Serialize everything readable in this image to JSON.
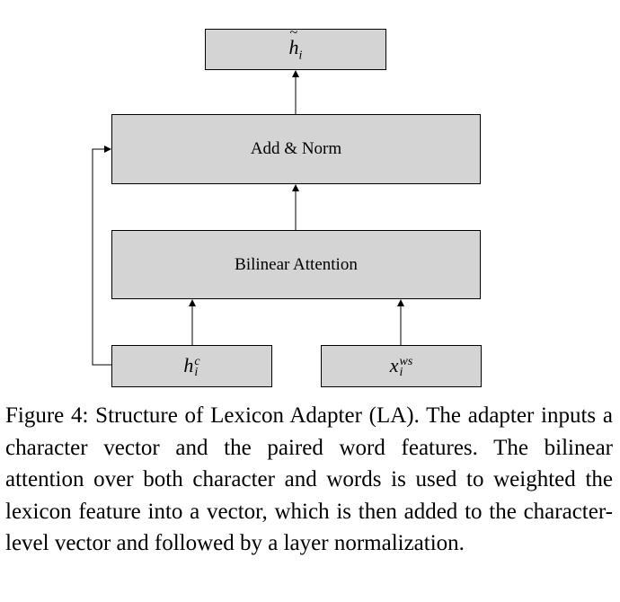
{
  "diagram": {
    "output_box": {
      "symbol": "h",
      "accent": "~",
      "subscript": "i"
    },
    "add_norm_box": {
      "label": "Add & Norm"
    },
    "bilinear_box": {
      "label": "Bilinear Attention"
    },
    "char_input_box": {
      "symbol": "h",
      "subscript": "i",
      "superscript": "c"
    },
    "word_input_box": {
      "symbol": "x",
      "subscript": "i",
      "superscript": "ws"
    }
  },
  "caption": {
    "text": "Figure 4:  Structure of Lexicon Adapter (LA). The adapter inputs a character vector and the paired word features. The bilinear attention over both character and words is used to weighted the lexicon feature into a vector, which is then added to the character-level vector and followed by a layer normalization."
  }
}
